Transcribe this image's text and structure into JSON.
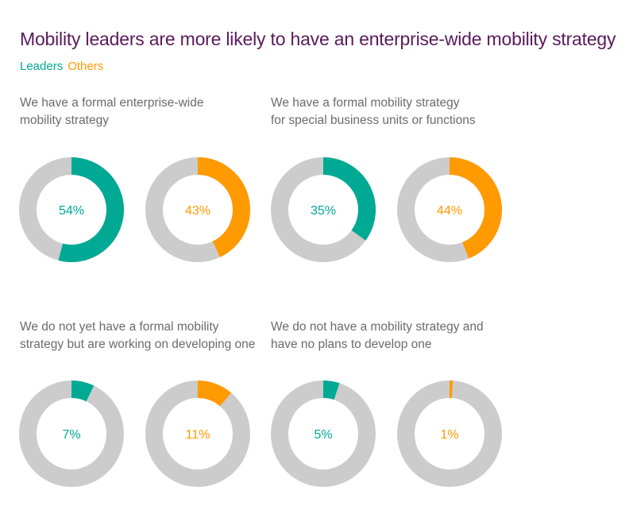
{
  "title": "Mobility leaders are more likely to have an enterprise-wide mobility strategy",
  "legend": [
    {
      "label": "Leaders",
      "color": "#00a994"
    },
    {
      "label": "Others",
      "color": "#ff9a00"
    }
  ],
  "colors": {
    "leaders": "#00a994",
    "others": "#ff9a00",
    "track": "#cbcccb",
    "title": "#5a1a5a",
    "text": "#6b6b6b"
  },
  "chart_data": {
    "type": "pie",
    "subtype": "donut",
    "title": "Mobility leaders are more likely to have an enterprise-wide mobility strategy",
    "series_names": [
      "Leaders",
      "Others"
    ],
    "unit": "%",
    "groups": [
      {
        "question": [
          "We have a formal enterprise-wide",
          "mobility strategy"
        ],
        "values": [
          {
            "series": "Leaders",
            "value": 54,
            "label": "54%"
          },
          {
            "series": "Others",
            "value": 43,
            "label": "43%"
          }
        ]
      },
      {
        "question": [
          "We have a formal mobility strategy",
          "for special business units or functions"
        ],
        "values": [
          {
            "series": "Leaders",
            "value": 35,
            "label": "35%"
          },
          {
            "series": "Others",
            "value": 44,
            "label": "44%"
          }
        ]
      },
      {
        "question": [
          "We do not yet have a formal mobility",
          "strategy but are working on developing one"
        ],
        "values": [
          {
            "series": "Leaders",
            "value": 7,
            "label": "7%"
          },
          {
            "series": "Others",
            "value": 11,
            "label": "11%"
          }
        ]
      },
      {
        "question": [
          "We do not have a mobility strategy and",
          "have no plans to develop one"
        ],
        "values": [
          {
            "series": "Leaders",
            "value": 5,
            "label": "5%"
          },
          {
            "series": "Others",
            "value": 1,
            "label": "1%"
          }
        ]
      }
    ]
  }
}
